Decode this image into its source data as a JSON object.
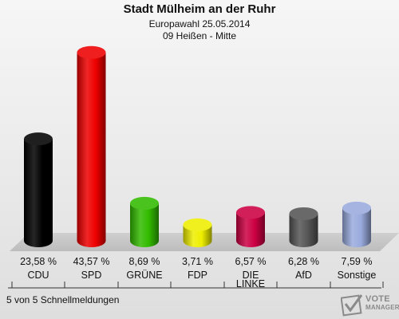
{
  "header": {
    "title": "Stadt Mülheim an der Ruhr",
    "subtitle1": "Europawahl 25.05.2014",
    "subtitle2": "09 Heißen - Mitte"
  },
  "footer": {
    "text": "5 von 5 Schnellmeldungen"
  },
  "logo": {
    "line1": "VOTE",
    "line2": "MANAGER"
  },
  "chart_data": {
    "type": "bar",
    "title": "Stadt Mülheim an der Ruhr",
    "categories": [
      "CDU",
      "SPD",
      "GRÜNE",
      "FDP",
      "DIE LINKE",
      "AfD",
      "Sonstige"
    ],
    "category_lines": [
      [
        "CDU"
      ],
      [
        "SPD"
      ],
      [
        "GRÜNE"
      ],
      [
        "FDP"
      ],
      [
        "DIE",
        "LINKE"
      ],
      [
        "AfD"
      ],
      [
        "Sonstige"
      ]
    ],
    "values": [
      23.58,
      43.57,
      8.69,
      3.71,
      6.57,
      6.28,
      7.59
    ],
    "value_labels": [
      "23,58 %",
      "43,57 %",
      "8,69 %",
      "3,71 %",
      "6,57 %",
      "6,28 %",
      "7,59 %"
    ],
    "colors": [
      "#000000",
      "#ee0000",
      "#33bb00",
      "#eeee00",
      "#cc0044",
      "#555555",
      "#99aadd"
    ],
    "ylim": [
      0,
      45
    ],
    "grid": false,
    "legend": "none"
  }
}
